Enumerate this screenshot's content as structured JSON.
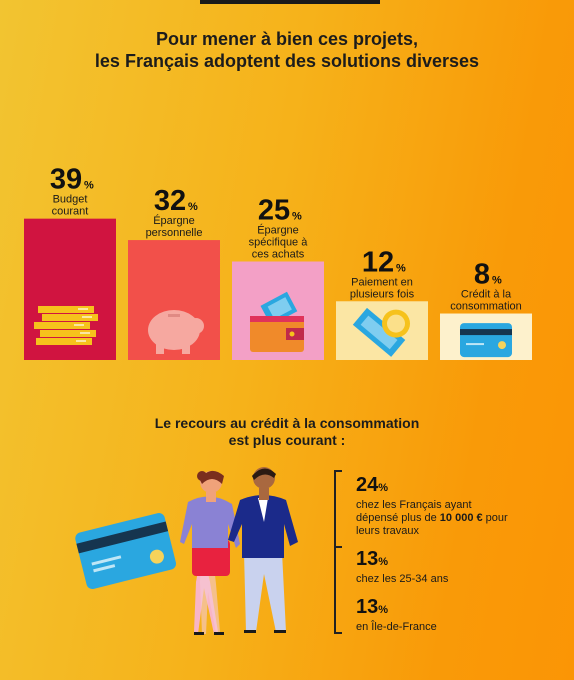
{
  "title_line1": "Pour mener à bien ces projets,",
  "title_line2": "les Français adoptent des solutions diverses",
  "chart_data": {
    "type": "bar",
    "categories": [
      "Budget courant",
      "Épargne personnelle",
      "Épargne spécifique à ces achats",
      "Paiement en plusieurs fois",
      "Crédit à la consommation"
    ],
    "values": [
      39,
      32,
      25,
      12,
      8
    ],
    "unit": "%",
    "labels": [
      [
        "Budget",
        "courant"
      ],
      [
        "Épargne",
        "personnelle"
      ],
      [
        "Épargne",
        "spécifique à",
        "ces achats"
      ],
      [
        "Paiement en",
        "plusieurs fois"
      ],
      [
        "Crédit à la",
        "consommation"
      ]
    ],
    "colors": [
      "#d01440",
      "#f2504a",
      "#f3a0c6",
      "#fbe6a4",
      "#fdf1cc"
    ],
    "icons": [
      "coins-icon",
      "piggy-bank-icon",
      "wallet-icon",
      "banknotes-coin-icon",
      "credit-card-icon"
    ]
  },
  "subtitle_line1": "Le recours au crédit à la consommation",
  "subtitle_line2": "est plus courant :",
  "stats": [
    {
      "value": "24",
      "unit": "%",
      "text_pre": "chez les Français ayant dépensé plus de ",
      "text_bold": "10 000 €",
      "text_post": " pour leurs travaux"
    },
    {
      "value": "13",
      "unit": "%",
      "text": "chez les 25-34 ans"
    },
    {
      "value": "13",
      "unit": "%",
      "text": "en Île-de-France"
    }
  ]
}
